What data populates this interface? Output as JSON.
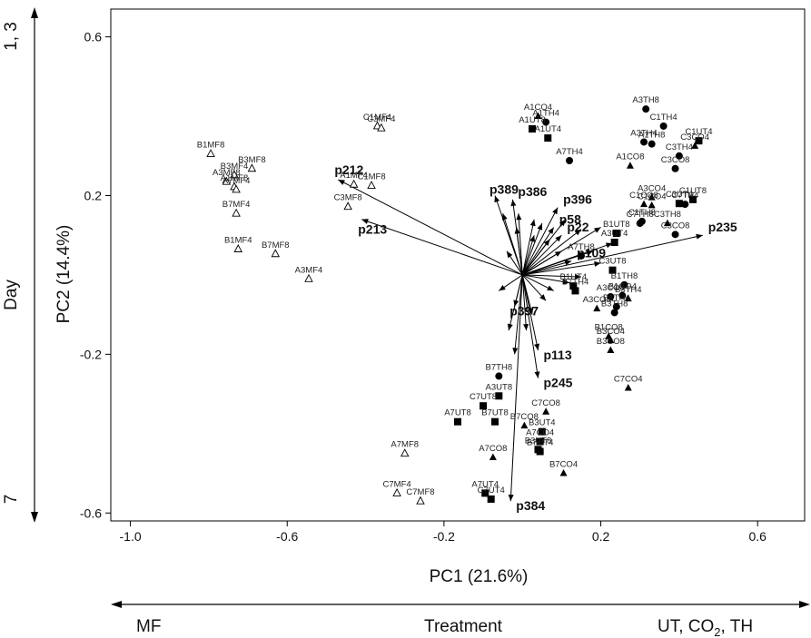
{
  "chart_data": {
    "type": "scatter",
    "title": "",
    "xlabel": "PC1 (21.6%)",
    "ylabel": "PC2 (14.4%)",
    "xlim": [
      -1.05,
      0.72
    ],
    "ylim": [
      -0.62,
      0.67
    ],
    "xticks": [
      "-1.0",
      "-0.6",
      "-0.2",
      "0.2",
      "0.6"
    ],
    "xtick_values": [
      -1.0,
      -0.6,
      -0.2,
      0.2,
      0.6
    ],
    "yticks": [
      "0.6",
      "0.2",
      "-0.2",
      "-0.6"
    ],
    "ytick_values": [
      0.6,
      0.2,
      -0.2,
      -0.6
    ],
    "grid": false,
    "side_axis": {
      "label": "Day",
      "top": "1, 3",
      "bottom": "7"
    },
    "bottom_axis": {
      "label": "Treatment",
      "left": "MF",
      "right": "UT, CO2, TH"
    },
    "points": [
      {
        "label": "B1MF8",
        "x": -0.795,
        "y": 0.305,
        "marker": "triangle-open"
      },
      {
        "label": "B3MF8",
        "x": -0.69,
        "y": 0.268,
        "marker": "triangle-open"
      },
      {
        "label": "B3MF4",
        "x": -0.735,
        "y": 0.252,
        "marker": "triangle-open"
      },
      {
        "label": "A3MF8",
        "x": -0.755,
        "y": 0.235,
        "marker": "triangle-open"
      },
      {
        "label": "A1MF8",
        "x": -0.735,
        "y": 0.222,
        "marker": "triangle-open"
      },
      {
        "label": "A7MF4",
        "x": -0.73,
        "y": 0.215,
        "marker": "triangle-open"
      },
      {
        "label": "B7MF4",
        "x": -0.73,
        "y": 0.155,
        "marker": "triangle-open"
      },
      {
        "label": "B1MF4",
        "x": -0.725,
        "y": 0.065,
        "marker": "triangle-open"
      },
      {
        "label": "B7MF8",
        "x": -0.63,
        "y": 0.053,
        "marker": "triangle-open"
      },
      {
        "label": "A3MF4",
        "x": -0.545,
        "y": -0.01,
        "marker": "triangle-open"
      },
      {
        "label": "C1MF4",
        "x": -0.37,
        "y": 0.375,
        "marker": "triangle-open"
      },
      {
        "label": "C3MF4",
        "x": -0.36,
        "y": 0.37,
        "marker": "triangle-open"
      },
      {
        "label": "A1MF4",
        "x": -0.43,
        "y": 0.228,
        "marker": "triangle-open"
      },
      {
        "label": "C1MF8",
        "x": -0.385,
        "y": 0.225,
        "marker": "triangle-open"
      },
      {
        "label": "C3MF8",
        "x": -0.445,
        "y": 0.172,
        "marker": "triangle-open"
      },
      {
        "label": "A7MF8",
        "x": -0.3,
        "y": -0.45,
        "marker": "triangle-open"
      },
      {
        "label": "C7MF4",
        "x": -0.32,
        "y": -0.55,
        "marker": "triangle-open"
      },
      {
        "label": "C7MF8",
        "x": -0.26,
        "y": -0.57,
        "marker": "triangle-open"
      },
      {
        "label": "A1CO4",
        "x": 0.04,
        "y": 0.4,
        "marker": "triangle-filled"
      },
      {
        "label": "A1TH4",
        "x": 0.06,
        "y": 0.385,
        "marker": "circle-filled"
      },
      {
        "label": "A1UT8",
        "x": 0.025,
        "y": 0.368,
        "marker": "square-filled"
      },
      {
        "label": "A1UT4",
        "x": 0.065,
        "y": 0.345,
        "marker": "square-filled"
      },
      {
        "label": "A7TH4",
        "x": 0.12,
        "y": 0.288,
        "marker": "circle-filled"
      },
      {
        "label": "A3TH8",
        "x": 0.315,
        "y": 0.418,
        "marker": "circle-filled"
      },
      {
        "label": "C1TH4",
        "x": 0.36,
        "y": 0.375,
        "marker": "circle-filled"
      },
      {
        "label": "A3TH4",
        "x": 0.31,
        "y": 0.335,
        "marker": "circle-filled"
      },
      {
        "label": "A1TH8",
        "x": 0.33,
        "y": 0.33,
        "marker": "circle-filled"
      },
      {
        "label": "C1UT4",
        "x": 0.45,
        "y": 0.338,
        "marker": "square-filled"
      },
      {
        "label": "C3CO4",
        "x": 0.44,
        "y": 0.325,
        "marker": "triangle-filled"
      },
      {
        "label": "C3TH4",
        "x": 0.4,
        "y": 0.3,
        "marker": "circle-filled"
      },
      {
        "label": "A1CO8",
        "x": 0.275,
        "y": 0.275,
        "marker": "triangle-filled"
      },
      {
        "label": "C3CO8",
        "x": 0.39,
        "y": 0.268,
        "marker": "circle-filled"
      },
      {
        "label": "A3CO4",
        "x": 0.33,
        "y": 0.195,
        "marker": "triangle-filled"
      },
      {
        "label": "C1UT8",
        "x": 0.435,
        "y": 0.19,
        "marker": "square-filled"
      },
      {
        "label": "C3UT4",
        "x": 0.4,
        "y": 0.18,
        "marker": "square-filled"
      },
      {
        "label": "C7TH4",
        "x": 0.415,
        "y": 0.178,
        "marker": "circle-filled"
      },
      {
        "label": "C1CO8",
        "x": 0.31,
        "y": 0.178,
        "marker": "triangle-filled"
      },
      {
        "label": "C1CO4",
        "x": 0.33,
        "y": 0.175,
        "marker": "triangle-filled"
      },
      {
        "label": "C1TH8",
        "x": 0.305,
        "y": 0.135,
        "marker": "circle-filled"
      },
      {
        "label": "C7TH8",
        "x": 0.3,
        "y": 0.13,
        "marker": "circle-filled"
      },
      {
        "label": "C3TH8",
        "x": 0.37,
        "y": 0.13,
        "marker": "triangle-filled"
      },
      {
        "label": "C3CO8",
        "x": 0.39,
        "y": 0.102,
        "marker": "circle-filled"
      },
      {
        "label": "B1UT8",
        "x": 0.24,
        "y": 0.105,
        "marker": "square-filled"
      },
      {
        "label": "A3UT4",
        "x": 0.235,
        "y": 0.082,
        "marker": "square-filled"
      },
      {
        "label": "A7TH8",
        "x": 0.15,
        "y": 0.048,
        "marker": "circle-filled"
      },
      {
        "label": "C3UT8",
        "x": 0.23,
        "y": 0.012,
        "marker": "square-filled"
      },
      {
        "label": "B1UT4",
        "x": 0.13,
        "y": -0.028,
        "marker": "square-filled"
      },
      {
        "label": "B1TH8",
        "x": 0.26,
        "y": -0.025,
        "marker": "circle-filled"
      },
      {
        "label": "B7TH4",
        "x": 0.135,
        "y": -0.04,
        "marker": "square-filled"
      },
      {
        "label": "B1CO4",
        "x": 0.255,
        "y": -0.052,
        "marker": "circle-filled"
      },
      {
        "label": "A3CO8",
        "x": 0.225,
        "y": -0.055,
        "marker": "circle-filled"
      },
      {
        "label": "B3TH4",
        "x": 0.27,
        "y": -0.06,
        "marker": "triangle-filled"
      },
      {
        "label": "B1TH4",
        "x": 0.24,
        "y": -0.08,
        "marker": "circle-filled"
      },
      {
        "label": "B3TH8",
        "x": 0.235,
        "y": -0.095,
        "marker": "circle-filled"
      },
      {
        "label": "A3CO8b",
        "x": 0.19,
        "y": -0.085,
        "marker": "triangle-filled"
      },
      {
        "label": "B1CO8",
        "x": 0.22,
        "y": -0.155,
        "marker": "triangle-filled"
      },
      {
        "label": "B3CO4",
        "x": 0.225,
        "y": -0.165,
        "marker": "triangle-filled"
      },
      {
        "label": "B3CO8",
        "x": 0.225,
        "y": -0.19,
        "marker": "triangle-filled"
      },
      {
        "label": "C7CO4",
        "x": 0.27,
        "y": -0.285,
        "marker": "triangle-filled"
      },
      {
        "label": "B7TH8",
        "x": -0.06,
        "y": -0.255,
        "marker": "circle-filled"
      },
      {
        "label": "A3UT8",
        "x": -0.06,
        "y": -0.305,
        "marker": "square-filled"
      },
      {
        "label": "C7UT8",
        "x": -0.1,
        "y": -0.33,
        "marker": "square-filled"
      },
      {
        "label": "C7CO8",
        "x": 0.06,
        "y": -0.345,
        "marker": "triangle-filled"
      },
      {
        "label": "A7UT8",
        "x": -0.165,
        "y": -0.37,
        "marker": "square-filled"
      },
      {
        "label": "B7UT8",
        "x": -0.07,
        "y": -0.37,
        "marker": "square-filled"
      },
      {
        "label": "B7CO8",
        "x": 0.005,
        "y": -0.38,
        "marker": "triangle-filled"
      },
      {
        "label": "B3UT4",
        "x": 0.05,
        "y": -0.395,
        "marker": "square-filled"
      },
      {
        "label": "A7CO4",
        "x": 0.045,
        "y": -0.42,
        "marker": "square-filled"
      },
      {
        "label": "A7CO8",
        "x": -0.075,
        "y": -0.46,
        "marker": "triangle-filled"
      },
      {
        "label": "B3UT8",
        "x": 0.04,
        "y": -0.44,
        "marker": "square-filled"
      },
      {
        "label": "B7UT4",
        "x": 0.045,
        "y": -0.445,
        "marker": "square-filled"
      },
      {
        "label": "B7CO4",
        "x": 0.105,
        "y": -0.5,
        "marker": "triangle-filled"
      },
      {
        "label": "A7UT4",
        "x": -0.095,
        "y": -0.55,
        "marker": "square-filled"
      },
      {
        "label": "C7UT4",
        "x": -0.08,
        "y": -0.565,
        "marker": "square-filled"
      }
    ],
    "vectors": [
      {
        "label": "p212",
        "x": -0.47,
        "y": 0.24,
        "labeled": true
      },
      {
        "label": "p213",
        "x": -0.41,
        "y": 0.14,
        "labeled": true
      },
      {
        "label": "p389",
        "x": -0.07,
        "y": 0.2,
        "labeled": true
      },
      {
        "label": "p386",
        "x": -0.025,
        "y": 0.19,
        "labeled": true
      },
      {
        "label": "p396",
        "x": 0.09,
        "y": 0.17,
        "labeled": true
      },
      {
        "label": "p58",
        "x": 0.08,
        "y": 0.12,
        "labeled": true
      },
      {
        "label": "p22",
        "x": 0.1,
        "y": 0.1,
        "labeled": true
      },
      {
        "label": "p235",
        "x": 0.46,
        "y": 0.1,
        "labeled": true
      },
      {
        "label": "p109",
        "x": 0.125,
        "y": 0.035,
        "labeled": true
      },
      {
        "label": "p397",
        "x": 0.06,
        "y": -0.065,
        "labeled": true
      },
      {
        "label": "p113",
        "x": 0.04,
        "y": -0.19,
        "labeled": true
      },
      {
        "label": "p245",
        "x": 0.04,
        "y": -0.26,
        "labeled": true
      },
      {
        "label": "p384",
        "x": -0.03,
        "y": -0.57,
        "labeled": true
      },
      {
        "label": "",
        "x": -0.05,
        "y": 0.155,
        "labeled": false
      },
      {
        "label": "",
        "x": -0.01,
        "y": 0.155,
        "labeled": false
      },
      {
        "label": "",
        "x": 0.03,
        "y": 0.14,
        "labeled": false
      },
      {
        "label": "",
        "x": 0.05,
        "y": 0.13,
        "labeled": false
      },
      {
        "label": "",
        "x": 0.11,
        "y": 0.14,
        "labeled": false
      },
      {
        "label": "",
        "x": 0.15,
        "y": 0.115,
        "labeled": false
      },
      {
        "label": "",
        "x": 0.2,
        "y": 0.12,
        "labeled": false
      },
      {
        "label": "",
        "x": 0.23,
        "y": 0.08,
        "labeled": false
      },
      {
        "label": "",
        "x": 0.18,
        "y": 0.06,
        "labeled": false
      },
      {
        "label": "",
        "x": 0.2,
        "y": 0.03,
        "labeled": false
      },
      {
        "label": "",
        "x": 0.15,
        "y": -0.005,
        "labeled": false
      },
      {
        "label": "",
        "x": 0.12,
        "y": -0.02,
        "labeled": false
      },
      {
        "label": "",
        "x": -0.04,
        "y": 0.06,
        "labeled": false
      },
      {
        "label": "",
        "x": -0.02,
        "y": -0.08,
        "labeled": false
      },
      {
        "label": "",
        "x": -0.035,
        "y": -0.14,
        "labeled": false
      },
      {
        "label": "",
        "x": -0.02,
        "y": -0.2,
        "labeled": false
      },
      {
        "label": "",
        "x": 0.01,
        "y": -0.14,
        "labeled": false
      },
      {
        "label": "",
        "x": 0.025,
        "y": -0.1,
        "labeled": false
      },
      {
        "label": "",
        "x": -0.06,
        "y": -0.04,
        "labeled": false
      },
      {
        "label": "",
        "x": 0.07,
        "y": 0.09,
        "labeled": false
      },
      {
        "label": "",
        "x": 0.03,
        "y": 0.1,
        "labeled": false
      },
      {
        "label": "",
        "x": -0.015,
        "y": 0.12,
        "labeled": false
      },
      {
        "label": "",
        "x": 0.1,
        "y": 0.06,
        "labeled": false
      },
      {
        "label": "",
        "x": 0.08,
        "y": -0.04,
        "labeled": false
      }
    ]
  }
}
